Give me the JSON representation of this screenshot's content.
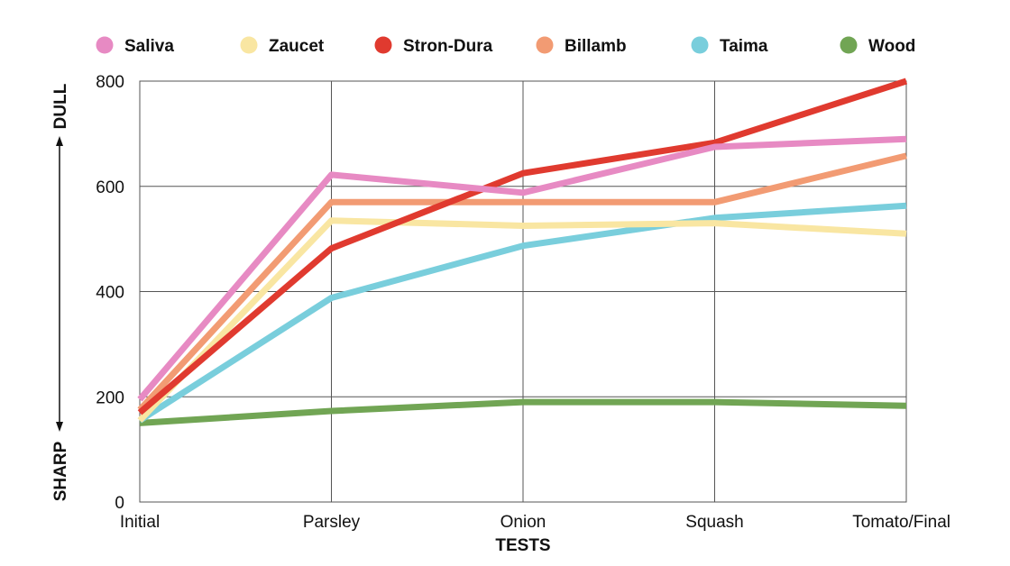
{
  "chart_data": {
    "type": "line",
    "categories": [
      "Initial",
      "Parsley",
      "Onion",
      "Squash",
      "Tomato/Final"
    ],
    "xlabel": "TESTS",
    "ylabel_top": "DULL",
    "ylabel_bottom": "SHARP",
    "ylim": [
      0,
      800
    ],
    "yticks": [
      0,
      200,
      400,
      600,
      800
    ],
    "grid": true,
    "legend_position": "top",
    "series": [
      {
        "name": "Saliva",
        "color": "#e78ac3",
        "values": [
          195,
          622,
          588,
          675,
          690
        ]
      },
      {
        "name": "Zaucet",
        "color": "#f9e6a2",
        "values": [
          155,
          535,
          525,
          530,
          510
        ]
      },
      {
        "name": "Stron-Dura",
        "color": "#e03a2f",
        "values": [
          170,
          482,
          625,
          683,
          800
        ]
      },
      {
        "name": "Billamb",
        "color": "#f29b73",
        "values": [
          175,
          570,
          570,
          570,
          658
        ]
      },
      {
        "name": "Taima",
        "color": "#79cedc",
        "values": [
          155,
          388,
          487,
          540,
          563
        ]
      },
      {
        "name": "Wood",
        "color": "#71a554",
        "values": [
          150,
          173,
          190,
          190,
          183
        ]
      }
    ]
  }
}
